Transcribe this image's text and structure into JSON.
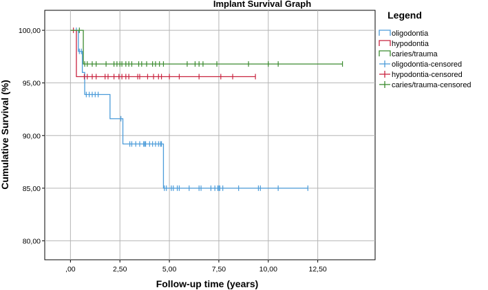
{
  "chart_data": {
    "type": "line",
    "title": "Implant Survival Graph",
    "xlabel": "Follow-up time (years)",
    "ylabel": "Cumulative Survival (%)",
    "xlim": [
      -1.3,
      15.4
    ],
    "ylim": [
      78.2,
      101.9
    ],
    "xticks": [
      0,
      2.5,
      5,
      7.5,
      10,
      12.5
    ],
    "xtick_labels": [
      ",00",
      "2,50",
      "5,00",
      "7,50",
      "10,00",
      "12,50"
    ],
    "yticks": [
      80,
      85,
      90,
      95,
      100
    ],
    "ytick_labels": [
      "80,00",
      "85,00",
      "90,00",
      "95,00",
      "100,00"
    ],
    "grid": true,
    "legend_position": "right",
    "legend": {
      "title": "Legend",
      "entries": [
        {
          "label": "oligodontia",
          "kind": "line",
          "color": "#4a9bd9"
        },
        {
          "label": "hypodontia",
          "kind": "line",
          "color": "#c8233f"
        },
        {
          "label": "caries/trauma",
          "kind": "line",
          "color": "#3a8a2e"
        },
        {
          "label": "oligodontia-censored",
          "kind": "censor",
          "color": "#4a9bd9"
        },
        {
          "label": "hypodontia-censored",
          "kind": "censor",
          "color": "#c8233f"
        },
        {
          "label": "caries/trauma-censored",
          "kind": "censor",
          "color": "#3a8a2e"
        }
      ]
    },
    "series": [
      {
        "name": "oligodontia",
        "color": "#4a9bd9",
        "steps": [
          [
            0,
            100
          ],
          [
            0.4,
            98.0
          ],
          [
            0.6,
            96.0
          ],
          [
            0.72,
            93.9
          ],
          [
            2.0,
            91.6
          ],
          [
            2.65,
            89.2
          ],
          [
            4.7,
            85.0
          ],
          [
            12.0,
            85.0
          ]
        ],
        "censored": [
          [
            0.3,
            100
          ],
          [
            0.45,
            98.0
          ],
          [
            0.55,
            98.0
          ],
          [
            0.8,
            93.9
          ],
          [
            0.95,
            93.9
          ],
          [
            1.1,
            93.9
          ],
          [
            1.25,
            93.9
          ],
          [
            1.4,
            93.9
          ],
          [
            2.55,
            91.6
          ],
          [
            3.0,
            89.2
          ],
          [
            3.1,
            89.2
          ],
          [
            3.3,
            89.2
          ],
          [
            3.5,
            89.2
          ],
          [
            3.7,
            89.2
          ],
          [
            3.75,
            89.2
          ],
          [
            3.8,
            89.2
          ],
          [
            4.0,
            89.2
          ],
          [
            4.15,
            89.2
          ],
          [
            4.3,
            89.2
          ],
          [
            4.45,
            89.2
          ],
          [
            4.55,
            89.2
          ],
          [
            4.6,
            89.2
          ],
          [
            4.75,
            85.0
          ],
          [
            4.85,
            85.0
          ],
          [
            5.1,
            85.0
          ],
          [
            5.2,
            85.0
          ],
          [
            5.4,
            85.0
          ],
          [
            5.5,
            85.0
          ],
          [
            6.0,
            85.0
          ],
          [
            6.5,
            85.0
          ],
          [
            6.6,
            85.0
          ],
          [
            7.1,
            85.0
          ],
          [
            7.3,
            85.0
          ],
          [
            7.45,
            85.0
          ],
          [
            7.5,
            85.0
          ],
          [
            7.55,
            85.0
          ],
          [
            7.7,
            85.0
          ],
          [
            8.5,
            85.0
          ],
          [
            9.5,
            85.0
          ],
          [
            9.6,
            85.0
          ],
          [
            10.5,
            85.0
          ],
          [
            12.0,
            85.0
          ]
        ]
      },
      {
        "name": "hypodontia",
        "color": "#c8233f",
        "steps": [
          [
            0,
            100
          ],
          [
            0.3,
            95.6
          ],
          [
            9.35,
            95.6
          ]
        ],
        "censored": [
          [
            0.15,
            100
          ],
          [
            0.7,
            95.6
          ],
          [
            0.85,
            95.6
          ],
          [
            1.1,
            95.6
          ],
          [
            1.3,
            95.6
          ],
          [
            1.75,
            95.6
          ],
          [
            1.9,
            95.6
          ],
          [
            2.2,
            95.6
          ],
          [
            2.45,
            95.6
          ],
          [
            2.6,
            95.6
          ],
          [
            2.8,
            95.6
          ],
          [
            2.95,
            95.6
          ],
          [
            3.4,
            95.6
          ],
          [
            3.5,
            95.6
          ],
          [
            3.9,
            95.6
          ],
          [
            4.2,
            95.6
          ],
          [
            4.45,
            95.6
          ],
          [
            4.6,
            95.6
          ],
          [
            5.0,
            95.6
          ],
          [
            5.5,
            95.6
          ],
          [
            6.5,
            95.6
          ],
          [
            7.6,
            95.6
          ],
          [
            8.2,
            95.6
          ],
          [
            9.35,
            95.6
          ]
        ]
      },
      {
        "name": "caries/trauma",
        "color": "#3a8a2e",
        "steps": [
          [
            0,
            100
          ],
          [
            0.65,
            96.8
          ],
          [
            13.75,
            96.8
          ]
        ],
        "censored": [
          [
            0.45,
            100
          ],
          [
            0.72,
            96.8
          ],
          [
            0.85,
            96.8
          ],
          [
            1.1,
            96.8
          ],
          [
            1.3,
            96.8
          ],
          [
            1.8,
            96.8
          ],
          [
            2.2,
            96.8
          ],
          [
            2.35,
            96.8
          ],
          [
            2.5,
            96.8
          ],
          [
            2.6,
            96.8
          ],
          [
            2.8,
            96.8
          ],
          [
            2.95,
            96.8
          ],
          [
            3.1,
            96.8
          ],
          [
            3.45,
            96.8
          ],
          [
            3.6,
            96.8
          ],
          [
            3.85,
            96.8
          ],
          [
            4.15,
            96.8
          ],
          [
            4.3,
            96.8
          ],
          [
            4.5,
            96.8
          ],
          [
            4.7,
            96.8
          ],
          [
            5.9,
            96.8
          ],
          [
            6.3,
            96.8
          ],
          [
            6.5,
            96.8
          ],
          [
            6.7,
            96.8
          ],
          [
            7.4,
            96.8
          ],
          [
            9.0,
            96.8
          ],
          [
            10.0,
            96.8
          ],
          [
            10.5,
            96.8
          ],
          [
            13.75,
            96.8
          ]
        ]
      }
    ]
  }
}
